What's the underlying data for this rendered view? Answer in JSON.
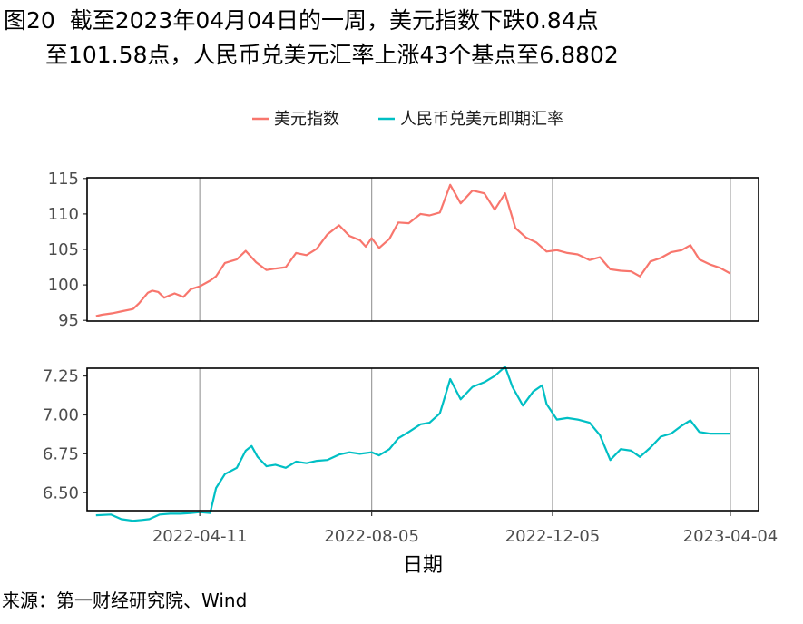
{
  "title": {
    "line1": "图20  截至2023年04月04日的一周，美元指数下跌0.84点",
    "line2": "至101.58点，人民币兑美元汇率上涨43个基点至6.8802"
  },
  "source": "来源：第一财经研究院、Wind",
  "colors": {
    "dxy": "#F8766D",
    "cny": "#00BFC4",
    "grid": "#9e9e9e",
    "frame": "#000000"
  },
  "chart_data": [
    {
      "type": "line",
      "panel": "top",
      "xlabel": "日期",
      "ylabel": "",
      "x_ticks": [
        "2022-04-11",
        "2022-08-05",
        "2022-12-05",
        "2023-04-04"
      ],
      "y_ticks": [
        "95",
        "100",
        "105",
        "110",
        "115"
      ],
      "xlim": [
        "2022-01-25",
        "2023-04-23"
      ],
      "ylim": [
        94.9,
        115.1
      ],
      "legend_position": "top",
      "series": [
        {
          "name": "美元指数",
          "color": "#F8766D",
          "points": [
            [
              "2022-01-31",
              95.6
            ],
            [
              "2022-02-04",
              95.8
            ],
            [
              "2022-02-11",
              96.0
            ],
            [
              "2022-02-18",
              96.3
            ],
            [
              "2022-02-25",
              96.6
            ],
            [
              "2022-03-01",
              97.4
            ],
            [
              "2022-03-07",
              98.9
            ],
            [
              "2022-03-10",
              99.2
            ],
            [
              "2022-03-14",
              99.0
            ],
            [
              "2022-03-18",
              98.2
            ],
            [
              "2022-03-25",
              98.8
            ],
            [
              "2022-03-31",
              98.3
            ],
            [
              "2022-04-05",
              99.4
            ],
            [
              "2022-04-11",
              99.8
            ],
            [
              "2022-04-18",
              100.6
            ],
            [
              "2022-04-22",
              101.2
            ],
            [
              "2022-04-28",
              103.1
            ],
            [
              "2022-05-06",
              103.6
            ],
            [
              "2022-05-12",
              104.8
            ],
            [
              "2022-05-19",
              103.2
            ],
            [
              "2022-05-26",
              102.1
            ],
            [
              "2022-06-01",
              102.3
            ],
            [
              "2022-06-08",
              102.5
            ],
            [
              "2022-06-15",
              104.5
            ],
            [
              "2022-06-22",
              104.2
            ],
            [
              "2022-06-29",
              105.1
            ],
            [
              "2022-07-06",
              107.1
            ],
            [
              "2022-07-14",
              108.4
            ],
            [
              "2022-07-21",
              106.9
            ],
            [
              "2022-07-28",
              106.3
            ],
            [
              "2022-08-01",
              105.4
            ],
            [
              "2022-08-05",
              106.6
            ],
            [
              "2022-08-10",
              105.2
            ],
            [
              "2022-08-17",
              106.5
            ],
            [
              "2022-08-23",
              108.8
            ],
            [
              "2022-08-30",
              108.7
            ],
            [
              "2022-09-07",
              110.0
            ],
            [
              "2022-09-13",
              109.8
            ],
            [
              "2022-09-20",
              110.2
            ],
            [
              "2022-09-27",
              114.1
            ],
            [
              "2022-10-04",
              111.5
            ],
            [
              "2022-10-12",
              113.3
            ],
            [
              "2022-10-20",
              112.9
            ],
            [
              "2022-10-27",
              110.6
            ],
            [
              "2022-11-03",
              112.9
            ],
            [
              "2022-11-10",
              108.0
            ],
            [
              "2022-11-17",
              106.7
            ],
            [
              "2022-11-24",
              106.0
            ],
            [
              "2022-12-01",
              104.7
            ],
            [
              "2022-12-08",
              104.9
            ],
            [
              "2022-12-15",
              104.5
            ],
            [
              "2022-12-22",
              104.3
            ],
            [
              "2022-12-30",
              103.5
            ],
            [
              "2023-01-06",
              103.9
            ],
            [
              "2023-01-13",
              102.2
            ],
            [
              "2023-01-20",
              102.0
            ],
            [
              "2023-01-27",
              101.9
            ],
            [
              "2023-02-02",
              101.2
            ],
            [
              "2023-02-09",
              103.3
            ],
            [
              "2023-02-16",
              103.8
            ],
            [
              "2023-02-23",
              104.6
            ],
            [
              "2023-03-02",
              104.9
            ],
            [
              "2023-03-08",
              105.6
            ],
            [
              "2023-03-14",
              103.6
            ],
            [
              "2023-03-21",
              102.9
            ],
            [
              "2023-03-28",
              102.4
            ],
            [
              "2023-04-04",
              101.6
            ]
          ]
        }
      ]
    },
    {
      "type": "line",
      "panel": "bottom",
      "xlabel": "日期",
      "ylabel": "",
      "x_ticks": [
        "2022-04-11",
        "2022-08-05",
        "2022-12-05",
        "2023-04-04"
      ],
      "y_ticks": [
        "6.50",
        "6.75",
        "7.00",
        "7.25"
      ],
      "xlim": [
        "2022-01-25",
        "2023-04-23"
      ],
      "ylim": [
        6.385,
        7.3
      ],
      "series": [
        {
          "name": "人民币兑美元即期汇率",
          "color": "#00BFC4",
          "points": [
            [
              "2022-01-31",
              6.355
            ],
            [
              "2022-02-10",
              6.36
            ],
            [
              "2022-02-17",
              6.33
            ],
            [
              "2022-02-25",
              6.32
            ],
            [
              "2022-03-03",
              6.325
            ],
            [
              "2022-03-08",
              6.33
            ],
            [
              "2022-03-15",
              6.36
            ],
            [
              "2022-03-22",
              6.365
            ],
            [
              "2022-03-29",
              6.365
            ],
            [
              "2022-04-05",
              6.37
            ],
            [
              "2022-04-11",
              6.375
            ],
            [
              "2022-04-18",
              6.37
            ],
            [
              "2022-04-22",
              6.53
            ],
            [
              "2022-04-28",
              6.62
            ],
            [
              "2022-05-06",
              6.66
            ],
            [
              "2022-05-12",
              6.77
            ],
            [
              "2022-05-16",
              6.8
            ],
            [
              "2022-05-20",
              6.73
            ],
            [
              "2022-05-26",
              6.67
            ],
            [
              "2022-06-01",
              6.68
            ],
            [
              "2022-06-08",
              6.66
            ],
            [
              "2022-06-15",
              6.7
            ],
            [
              "2022-06-22",
              6.69
            ],
            [
              "2022-06-29",
              6.705
            ],
            [
              "2022-07-06",
              6.71
            ],
            [
              "2022-07-14",
              6.745
            ],
            [
              "2022-07-21",
              6.76
            ],
            [
              "2022-07-28",
              6.75
            ],
            [
              "2022-08-05",
              6.76
            ],
            [
              "2022-08-10",
              6.74
            ],
            [
              "2022-08-17",
              6.78
            ],
            [
              "2022-08-23",
              6.85
            ],
            [
              "2022-08-30",
              6.89
            ],
            [
              "2022-09-07",
              6.94
            ],
            [
              "2022-09-13",
              6.95
            ],
            [
              "2022-09-20",
              7.01
            ],
            [
              "2022-09-27",
              7.23
            ],
            [
              "2022-10-04",
              7.1
            ],
            [
              "2022-10-12",
              7.18
            ],
            [
              "2022-10-20",
              7.21
            ],
            [
              "2022-10-27",
              7.25
            ],
            [
              "2022-11-03",
              7.31
            ],
            [
              "2022-11-08",
              7.18
            ],
            [
              "2022-11-15",
              7.06
            ],
            [
              "2022-11-22",
              7.15
            ],
            [
              "2022-11-28",
              7.19
            ],
            [
              "2022-12-01",
              7.07
            ],
            [
              "2022-12-08",
              6.97
            ],
            [
              "2022-12-15",
              6.98
            ],
            [
              "2022-12-22",
              6.97
            ],
            [
              "2022-12-30",
              6.95
            ],
            [
              "2023-01-06",
              6.87
            ],
            [
              "2023-01-13",
              6.71
            ],
            [
              "2023-01-20",
              6.78
            ],
            [
              "2023-01-27",
              6.77
            ],
            [
              "2023-02-02",
              6.73
            ],
            [
              "2023-02-09",
              6.79
            ],
            [
              "2023-02-16",
              6.86
            ],
            [
              "2023-02-23",
              6.88
            ],
            [
              "2023-03-02",
              6.93
            ],
            [
              "2023-03-08",
              6.965
            ],
            [
              "2023-03-14",
              6.89
            ],
            [
              "2023-03-21",
              6.88
            ],
            [
              "2023-03-28",
              6.88
            ],
            [
              "2023-04-04",
              6.88
            ]
          ]
        }
      ]
    }
  ]
}
